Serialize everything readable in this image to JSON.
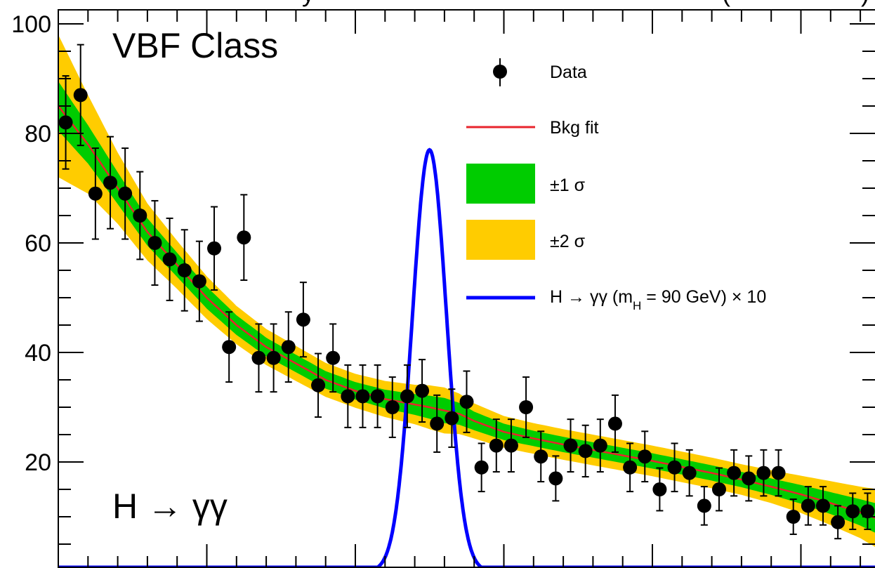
{
  "labels": {
    "class_label": "VBF Class",
    "process_label": "H → γγ",
    "top_fragment_left": "y",
    "top_fragment_right": "(",
    "top_fragment_right2": ")"
  },
  "legend": {
    "data": "Data",
    "bkg_fit": "Bkg fit",
    "one_sigma": "±1 σ",
    "two_sigma": "±2 σ",
    "signal_prefix": "H → γγ (m",
    "signal_sub": "H",
    "signal_suffix": " = 90 GeV) × 10"
  },
  "colors": {
    "data": "#000000",
    "fit": "#e8242c",
    "one_sigma": "#00cc00",
    "two_sigma": "#ffcc00",
    "signal": "#0000ff"
  },
  "chart_data": {
    "type": "scatter",
    "ylim": [
      0,
      100
    ],
    "yticks": [
      20,
      40,
      60,
      80,
      100
    ],
    "xlim": [
      0,
      55
    ],
    "grid": false,
    "legend_position": "top-right",
    "data_x": [
      0.5,
      1.5,
      2.5,
      3.5,
      4.5,
      5.5,
      6.5,
      7.5,
      8.5,
      9.5,
      10.5,
      11.5,
      12.5,
      13.5,
      14.5,
      15.5,
      16.5,
      17.5,
      18.5,
      19.5,
      20.5,
      21.5,
      22.5,
      23.5,
      24.5,
      25.5,
      26.5,
      27.5,
      28.5,
      29.5,
      30.5,
      31.5,
      32.5,
      33.5,
      34.5,
      35.5,
      36.5,
      37.5,
      38.5,
      39.5,
      40.5,
      41.5,
      42.5,
      43.5,
      44.5,
      45.5,
      46.5,
      47.5,
      48.5,
      49.5,
      50.5,
      51.5,
      52.5,
      53.5,
      54.5
    ],
    "data_y": [
      82,
      87,
      69,
      71,
      69,
      65,
      60,
      57,
      55,
      53,
      59,
      41,
      61,
      39,
      39,
      41,
      46,
      34,
      39,
      32,
      32,
      32,
      30,
      32,
      33,
      27,
      28,
      31,
      19,
      23,
      23,
      30,
      21,
      17,
      23,
      22,
      23,
      27,
      19,
      21,
      15,
      19,
      18,
      12,
      15,
      18,
      17,
      18,
      18,
      10,
      12,
      12,
      9,
      11,
      11
    ],
    "data_err": [
      8.5,
      9.2,
      8.3,
      8.4,
      8.3,
      8.0,
      7.7,
      7.5,
      7.4,
      7.3,
      7.6,
      6.4,
      7.8,
      6.2,
      6.2,
      6.4,
      6.8,
      5.8,
      6.2,
      5.7,
      5.7,
      5.7,
      5.5,
      5.7,
      5.7,
      5.2,
      5.3,
      5.6,
      4.4,
      4.8,
      4.8,
      5.5,
      4.6,
      4.1,
      4.8,
      4.7,
      4.8,
      5.2,
      4.4,
      4.6,
      3.9,
      4.4,
      4.2,
      3.5,
      3.9,
      4.2,
      4.1,
      4.2,
      4.2,
      3.2,
      3.5,
      3.5,
      3.0,
      3.3,
      3.3
    ],
    "fit_x": [
      0,
      2,
      4,
      6,
      8,
      10,
      12,
      14,
      16,
      18,
      20,
      22,
      24,
      25,
      26,
      27,
      28,
      30,
      32,
      34,
      36,
      38,
      40,
      42,
      44,
      46,
      48,
      50,
      52,
      54,
      55
    ],
    "fit_y": [
      85,
      78,
      70,
      62,
      56,
      50,
      45,
      41,
      38,
      35,
      33,
      31.5,
      30.5,
      30,
      29.4,
      28.8,
      27.5,
      25.5,
      24.3,
      23.2,
      22.2,
      21.2,
      20.2,
      19.1,
      18,
      16.8,
      15.5,
      14.1,
      12.5,
      10.8,
      9.8
    ],
    "band1_halfwidth": [
      4.5,
      3.5,
      2.9,
      2.5,
      2.2,
      2.0,
      1.8,
      1.7,
      1.6,
      1.6,
      1.6,
      1.7,
      1.9,
      2.1,
      2.3,
      2.0,
      1.7,
      1.5,
      1.4,
      1.4,
      1.4,
      1.4,
      1.4,
      1.4,
      1.4,
      1.4,
      1.5,
      1.7,
      2.0,
      2.4,
      2.7
    ],
    "band2_halfwidth": [
      13,
      9,
      6.5,
      5.2,
      4.4,
      3.9,
      3.5,
      3.3,
      3.2,
      3.1,
      3.1,
      3.3,
      3.6,
      4.0,
      4.2,
      3.7,
      3.2,
      2.9,
      2.8,
      2.8,
      2.8,
      2.8,
      2.8,
      2.8,
      2.8,
      2.8,
      3.0,
      3.4,
      4.0,
      4.7,
      5.3
    ],
    "signal": {
      "mean": 25.0,
      "sigma": 1.15,
      "peak": 77
    }
  }
}
